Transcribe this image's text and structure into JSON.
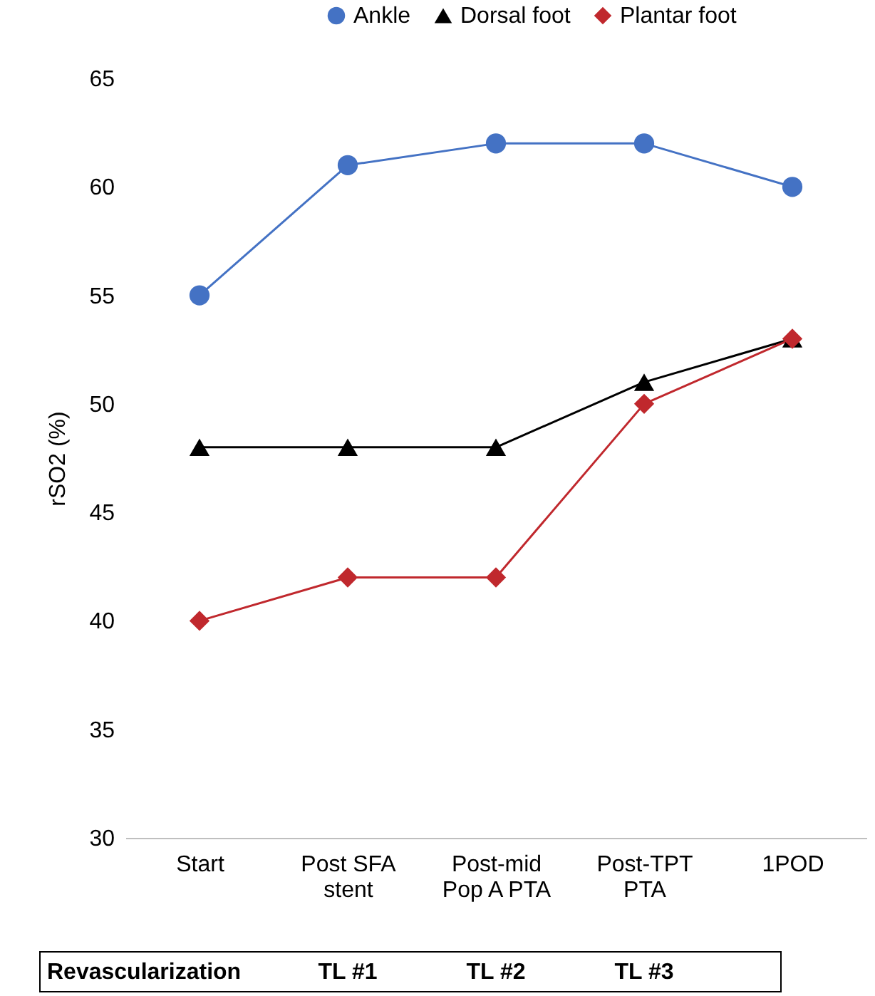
{
  "chart_data": {
    "type": "line",
    "ylabel": "rSO2 (%)",
    "categories": [
      "Start",
      "Post SFA stent",
      "Post-mid Pop A PTA",
      "Post-TPT PTA",
      "1POD"
    ],
    "series": [
      {
        "name": "Ankle",
        "color": "#4472c4",
        "marker": "circle",
        "values": [
          55,
          61,
          62,
          62,
          60
        ]
      },
      {
        "name": "Dorsal foot",
        "color": "#000000",
        "marker": "triangle",
        "values": [
          48,
          48,
          48,
          51,
          53
        ]
      },
      {
        "name": "Plantar foot",
        "color": "#c0282d",
        "marker": "diamond",
        "values": [
          40,
          42,
          42,
          50,
          53
        ]
      }
    ],
    "ylim": [
      30,
      65
    ],
    "yticks": [
      30,
      35,
      40,
      45,
      50,
      55,
      60,
      65
    ],
    "grid": false,
    "legend": "top",
    "annotations": [
      "Revascularization",
      "TL #1",
      "TL #2",
      "TL #3"
    ]
  }
}
